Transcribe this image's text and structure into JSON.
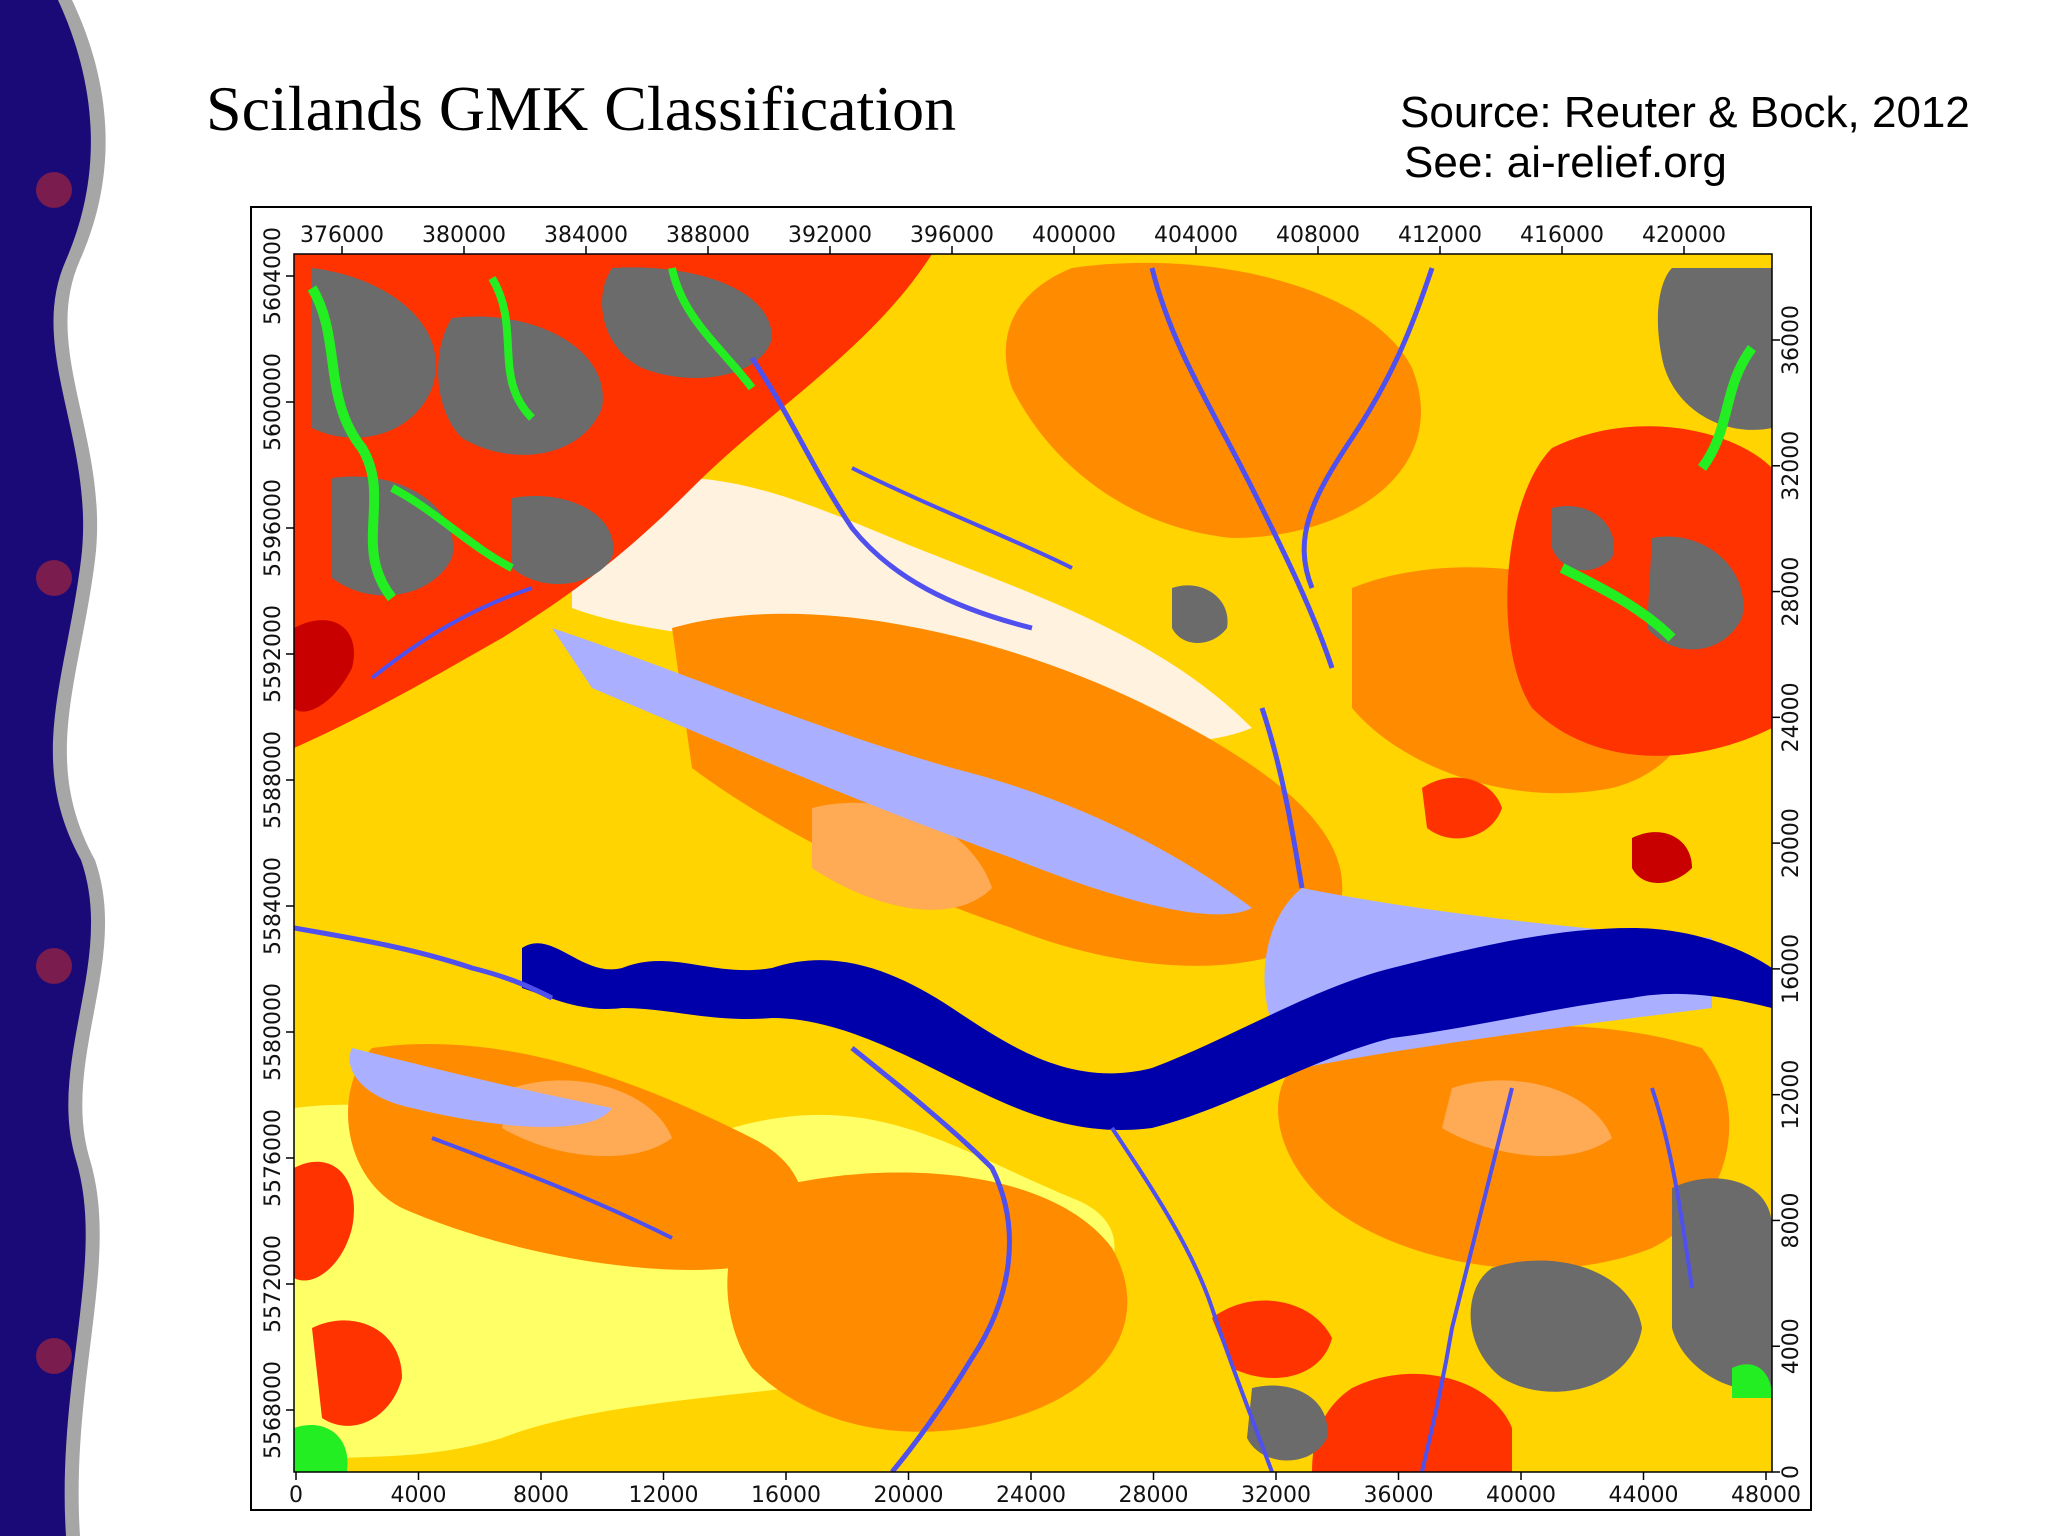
{
  "slide": {
    "title": "Scilands GMK Classification",
    "source": "Source: Reuter & Bock, 2012",
    "see": "See: ai-relief.org"
  },
  "map": {
    "x_bottom_ticks": [
      "0",
      "4000",
      "8000",
      "12000",
      "16000",
      "20000",
      "24000",
      "28000",
      "32000",
      "36000",
      "40000",
      "44000",
      "48000"
    ],
    "x_top_ticks": [
      "376000",
      "380000",
      "384000",
      "388000",
      "392000",
      "396000",
      "400000",
      "404000",
      "408000",
      "412000",
      "416000",
      "420000"
    ],
    "y_left_ticks": [
      "5604000",
      "5600000",
      "5596000",
      "5592000",
      "5588000",
      "5584000",
      "5580000",
      "5576000",
      "5572000",
      "5568000"
    ],
    "y_right_ticks": [
      "36000",
      "32000",
      "28000",
      "24000",
      "20000",
      "16000",
      "12000",
      "8000",
      "4000",
      "0"
    ],
    "class_colors": {
      "summit": "#6b6b6b",
      "steep_slope": "#ff3300",
      "dark_red": "#c80000",
      "ridge_channel": "#22ee22",
      "slope": "#ff8c00",
      "light_slope": "#ffaa55",
      "yellow": "#ffd400",
      "pale_yellow": "#ffff66",
      "cream": "#fff3e0",
      "pale_blue": "#aab0ff",
      "blue_channel": "#5050ee",
      "dark_blue": "#0000aa"
    }
  }
}
